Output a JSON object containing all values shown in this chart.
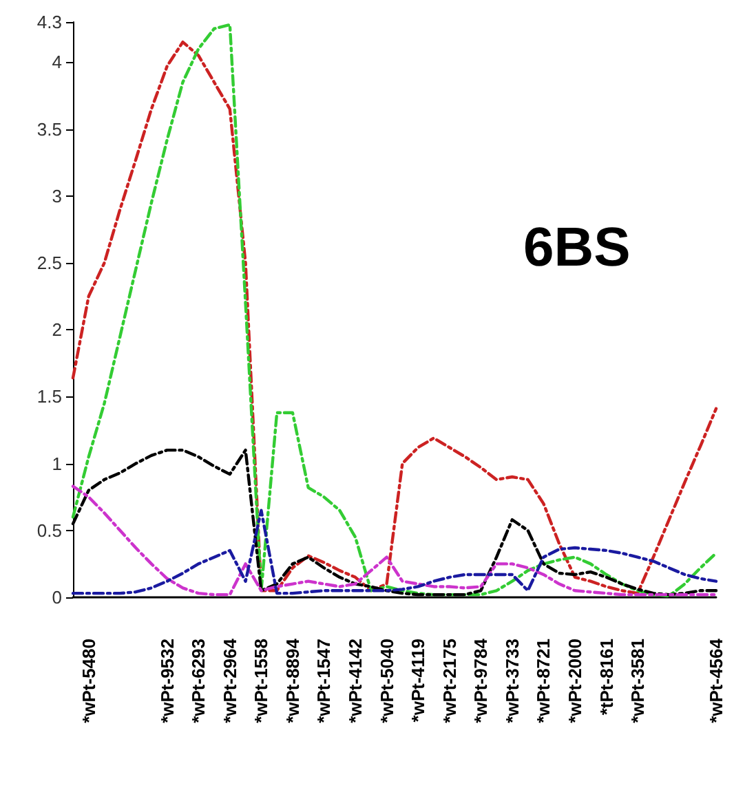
{
  "chart_data": {
    "type": "line",
    "categories": [
      null,
      "*wPt-5480",
      null,
      null,
      null,
      null,
      "*wPt-9532",
      null,
      "*wPt-6293",
      null,
      "*wPt-2964",
      null,
      "*wPt-1558",
      null,
      "*wPt-8894",
      null,
      "*wPt-1547",
      null,
      "*wPt-4142",
      null,
      "*wPt-5040",
      null,
      "*wPt-4119",
      null,
      "*wPt-2175",
      null,
      "*wPt-9784",
      null,
      "*wPt-3733",
      null,
      "*wPt-8721",
      null,
      "*wPt-2000",
      null,
      "*tPt-8161",
      null,
      "*wPt-3581",
      null,
      null,
      null,
      null,
      "*wPt-4564"
    ],
    "series": [
      {
        "color": "#cc2222",
        "values": [
          1.64,
          2.25,
          2.5,
          2.9,
          3.27,
          3.65,
          3.97,
          4.15,
          4.05,
          3.85,
          3.65,
          2.5,
          0.05,
          0.05,
          0.22,
          0.31,
          0.26,
          0.2,
          0.15,
          0.05,
          0.1,
          1.0,
          1.12,
          1.19,
          1.12,
          1.05,
          0.97,
          0.88,
          0.9,
          0.88,
          0.7,
          0.4,
          0.15,
          0.12,
          0.08,
          0.05,
          0.03,
          0.3,
          0.58,
          0.86,
          1.13,
          1.41
        ]
      },
      {
        "color": "#33cc33",
        "values": [
          0.6,
          1.05,
          1.45,
          1.95,
          2.45,
          2.95,
          3.42,
          3.85,
          4.1,
          4.25,
          4.28,
          2.2,
          0.05,
          1.38,
          1.38,
          0.82,
          0.75,
          0.65,
          0.45,
          0.05,
          0.08,
          0.05,
          0.03,
          0.02,
          0.02,
          0.02,
          0.02,
          0.05,
          0.12,
          0.2,
          0.25,
          0.28,
          0.3,
          0.25,
          0.17,
          0.1,
          0.05,
          0.02,
          0.01,
          0.1,
          0.22,
          0.33
        ]
      },
      {
        "color": "#000000",
        "values": [
          0.55,
          0.8,
          0.88,
          0.93,
          1.0,
          1.06,
          1.1,
          1.1,
          1.05,
          0.98,
          0.92,
          1.1,
          0.05,
          0.1,
          0.25,
          0.3,
          0.22,
          0.15,
          0.1,
          0.08,
          0.05,
          0.03,
          0.02,
          0.02,
          0.02,
          0.02,
          0.05,
          0.3,
          0.58,
          0.5,
          0.25,
          0.18,
          0.17,
          0.19,
          0.15,
          0.1,
          0.06,
          0.03,
          0.02,
          0.03,
          0.05,
          0.05
        ]
      },
      {
        "color": "#cc33cc",
        "values": [
          0.83,
          0.75,
          0.63,
          0.5,
          0.37,
          0.25,
          0.14,
          0.07,
          0.03,
          0.02,
          0.02,
          0.25,
          0.05,
          0.08,
          0.1,
          0.12,
          0.1,
          0.08,
          0.1,
          0.2,
          0.3,
          0.12,
          0.1,
          0.08,
          0.08,
          0.07,
          0.08,
          0.25,
          0.25,
          0.22,
          0.17,
          0.1,
          0.05,
          0.04,
          0.03,
          0.02,
          0.02,
          0.02,
          0.02,
          0.02,
          0.02,
          0.02
        ]
      },
      {
        "color": "#1a1aa0",
        "values": [
          0.03,
          0.03,
          0.03,
          0.03,
          0.04,
          0.07,
          0.12,
          0.18,
          0.25,
          0.3,
          0.35,
          0.12,
          0.65,
          0.03,
          0.03,
          0.04,
          0.05,
          0.05,
          0.05,
          0.05,
          0.05,
          0.06,
          0.08,
          0.12,
          0.15,
          0.17,
          0.17,
          0.17,
          0.17,
          0.05,
          0.3,
          0.36,
          0.37,
          0.36,
          0.35,
          0.33,
          0.3,
          0.27,
          0.22,
          0.17,
          0.14,
          0.12
        ]
      }
    ],
    "ylim": [
      0,
      4.3
    ],
    "yticks": [
      0,
      0.5,
      1,
      1.5,
      2,
      2.5,
      3,
      3.5,
      4,
      4.3
    ],
    "annotations": [
      "6BS"
    ],
    "line_style": "dashdot",
    "marker": "none",
    "grid": false
  }
}
